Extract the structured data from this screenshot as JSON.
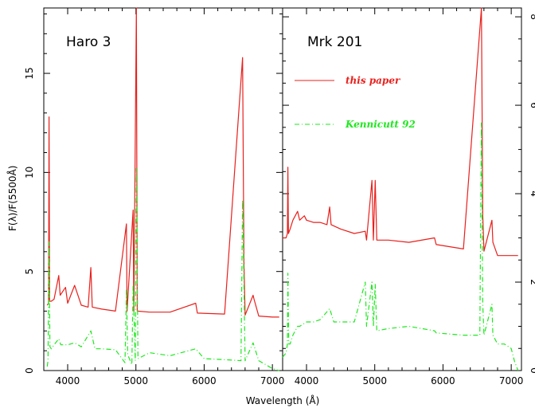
{
  "chart_data": {
    "type": "line",
    "xlabel": "Wavelength (Å)",
    "panels": [
      {
        "title": "Haro 3",
        "ylabel": "F(λ)/F(5500Å)",
        "xlim": [
          3650,
          7150
        ],
        "ylim": [
          0,
          18.3
        ],
        "xticks": [
          4000,
          5000,
          6000,
          7000
        ],
        "yticks": [
          0,
          5,
          10,
          15
        ],
        "series": [
          {
            "name": "this paper",
            "color": "#e8201c",
            "style": "solid",
            "x": [
              3700,
              3720,
              3727,
              3735,
              3760,
              3800,
              3869,
              3890,
              3968,
              4000,
              4102,
              4200,
              4300,
              4340,
              4360,
              4500,
              4700,
              4861,
              4870,
              4959,
              4970,
              5007,
              5020,
              5200,
              5500,
              5876,
              5900,
              6300,
              6563,
              6583,
              6600,
              6717,
              6731,
              6800,
              7000,
              7100
            ],
            "y": [
              3.3,
              3.4,
              12.8,
              3.5,
              3.5,
              3.6,
              4.8,
              3.8,
              4.2,
              3.4,
              4.3,
              3.3,
              3.2,
              5.2,
              3.2,
              3.1,
              3.0,
              7.4,
              3.0,
              8.1,
              3.0,
              18.3,
              3.0,
              2.95,
              2.95,
              3.4,
              2.9,
              2.85,
              15.8,
              5.5,
              2.8,
              3.8,
              3.6,
              2.75,
              2.7,
              2.7
            ]
          },
          {
            "name": "Kennicutt 92",
            "color": "#1ee81e",
            "style": "dashdot",
            "x": [
              3700,
              3712,
              3727,
              3740,
              3760,
              3800,
              3869,
              3900,
              4000,
              4102,
              4200,
              4340,
              4400,
              4500,
              4700,
              4840,
              4861,
              4880,
              4940,
              4959,
              4990,
              5007,
              5030,
              5200,
              5500,
              5876,
              6000,
              6300,
              6540,
              6563,
              6600,
              6717,
              6800,
              6900,
              7000,
              7100
            ],
            "y": [
              0.2,
              0.5,
              6.5,
              1.2,
              1.1,
              1.3,
              1.6,
              1.3,
              1.3,
              1.4,
              1.2,
              2.0,
              1.1,
              1.1,
              1.05,
              0.4,
              4.1,
              0.8,
              0.3,
              4.3,
              0.5,
              10.2,
              0.6,
              0.9,
              0.75,
              1.1,
              0.6,
              0.55,
              0.5,
              8.6,
              0.5,
              1.4,
              0.5,
              0.3,
              0.1,
              0.0
            ]
          }
        ]
      },
      {
        "title": "Mrk 201",
        "ylabel": "",
        "xlim": [
          3650,
          7150
        ],
        "ylim": [
          0,
          8.2
        ],
        "xticks": [
          4000,
          5000,
          6000,
          7000
        ],
        "yticks": [
          0,
          2,
          4,
          6,
          8
        ],
        "series": [
          {
            "name": "this paper",
            "color": "#e8201c",
            "style": "solid",
            "x": [
              3650,
              3700,
              3720,
              3727,
              3735,
              3760,
              3800,
              3869,
              3900,
              3968,
              4000,
              4102,
              4200,
              4300,
              4340,
              4360,
              4500,
              4700,
              4861,
              4880,
              4959,
              4980,
              5007,
              5030,
              5200,
              5500,
              5876,
              5900,
              6300,
              6563,
              6583,
              6600,
              6717,
              6731,
              6800,
              7000,
              7100
            ],
            "y": [
              3.0,
              3.0,
              3.1,
              4.6,
              3.1,
              3.2,
              3.4,
              3.6,
              3.4,
              3.5,
              3.4,
              3.35,
              3.35,
              3.3,
              3.7,
              3.3,
              3.2,
              3.1,
              3.15,
              2.95,
              4.3,
              2.95,
              4.3,
              2.95,
              2.95,
              2.9,
              3.0,
              2.85,
              2.75,
              8.2,
              3.5,
              2.7,
              3.4,
              2.9,
              2.6,
              2.6,
              2.6
            ]
          },
          {
            "name": "Kennicutt 92",
            "color": "#1ee81e",
            "style": "dashdot",
            "x": [
              3650,
              3700,
              3720,
              3727,
              3740,
              3760,
              3800,
              3869,
              3900,
              4000,
              4102,
              4200,
              4340,
              4400,
              4500,
              4700,
              4861,
              4880,
              4959,
              4980,
              5007,
              5030,
              5200,
              5500,
              5876,
              5900,
              6300,
              6540,
              6563,
              6583,
              6600,
              6717,
              6731,
              6800,
              6900,
              7000,
              7050,
              7100
            ],
            "y": [
              0.3,
              0.4,
              0.6,
              2.2,
              0.6,
              0.6,
              0.8,
              1.0,
              1.0,
              1.1,
              1.1,
              1.15,
              1.4,
              1.1,
              1.1,
              1.1,
              2.0,
              1.0,
              2.0,
              1.0,
              1.95,
              0.9,
              0.95,
              1.0,
              0.9,
              0.85,
              0.8,
              0.8,
              5.6,
              1.5,
              0.8,
              1.5,
              0.8,
              0.6,
              0.6,
              0.5,
              0.2,
              0.0
            ]
          }
        ]
      }
    ],
    "legend": {
      "placement": "upper-left of right panel",
      "entries": [
        {
          "label": "this paper",
          "color": "#e8201c",
          "style": "solid"
        },
        {
          "label": "Kennicutt 92",
          "color": "#1ee81e",
          "style": "dashdot"
        }
      ]
    }
  }
}
